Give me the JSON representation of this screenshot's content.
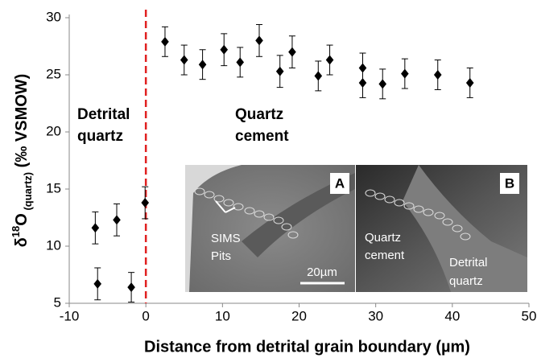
{
  "chart_data": {
    "type": "scatter",
    "x_label": "Distance from detrital grain boundary (µm)",
    "y_label": [
      "δ",
      "18",
      "O",
      " (quartz)",
      " (‰ VSMOW)"
    ],
    "series": [
      {
        "color": "#000000",
        "x": [
          -6.6,
          -6.3,
          -3.8,
          -1.9,
          -0.1,
          2.5,
          5.0,
          7.4,
          10.2,
          12.3,
          14.8,
          17.5,
          19.1,
          22.5,
          24.0,
          28.3,
          28.3,
          30.9,
          33.8,
          38.1,
          42.3
        ],
        "values": [
          11.6,
          6.7,
          12.3,
          6.4,
          13.8,
          27.9,
          26.3,
          25.9,
          27.2,
          26.1,
          28.0,
          25.3,
          27.0,
          24.9,
          26.3,
          25.6,
          24.3,
          24.2,
          25.1,
          25.0,
          24.3
        ],
        "errors": [
          1.4,
          1.4,
          1.4,
          1.3,
          1.4,
          1.3,
          1.3,
          1.3,
          1.4,
          1.3,
          1.4,
          1.4,
          1.4,
          1.3,
          1.3,
          1.3,
          1.3,
          1.3,
          1.3,
          1.3,
          1.3
        ]
      }
    ],
    "xlim": [
      -10,
      50
    ],
    "xticks": [
      -10,
      0,
      10,
      20,
      30,
      40,
      50
    ],
    "ylim": [
      5,
      30
    ],
    "yticks": [
      5,
      10,
      15,
      20,
      25,
      30
    ],
    "reference_line": {
      "x": 0,
      "color": "#e02020"
    },
    "annotations": {
      "left": [
        "Detrital",
        "quartz"
      ],
      "right": [
        "Quartz",
        "cement"
      ]
    },
    "inset": {
      "panel_a": {
        "label": "A",
        "pits": [
          "SIMS",
          "Pits"
        ],
        "scale": "20µm"
      },
      "panel_b": {
        "label": "B",
        "cement": [
          "Quartz",
          "cement"
        ],
        "detrital": [
          "Detrital",
          "quartz"
        ]
      }
    }
  }
}
